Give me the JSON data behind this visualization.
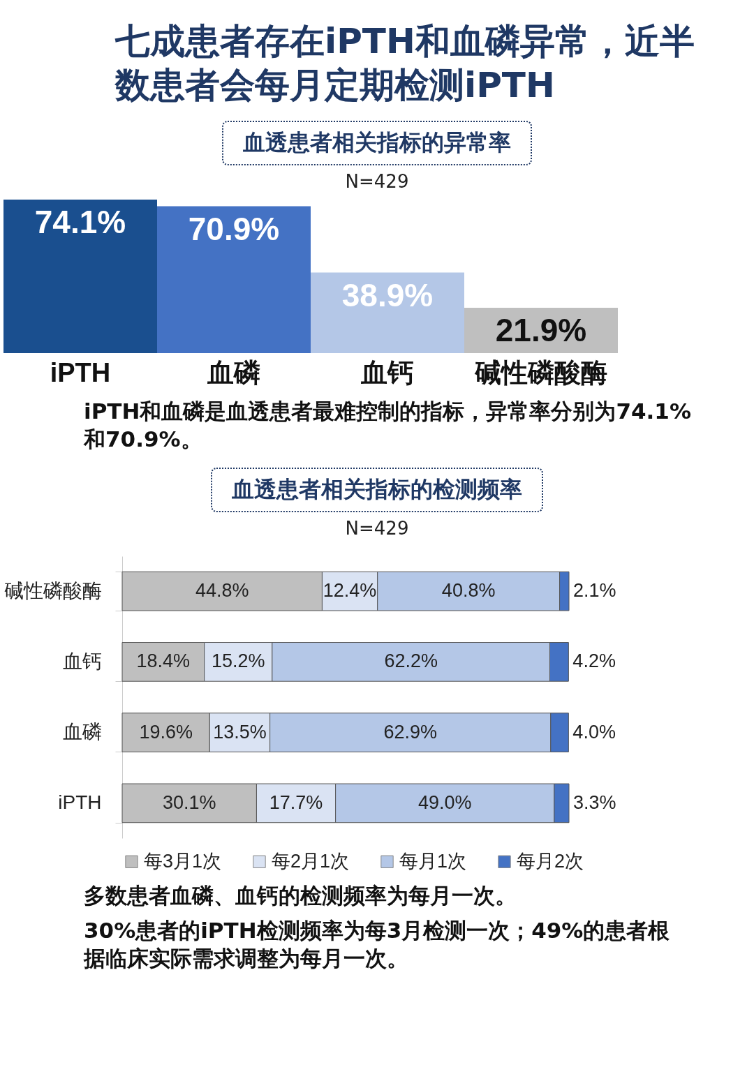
{
  "chart_data": [
    {
      "type": "bar",
      "title": "七成患者存在iPTH和血磷异常，近半数患者会每月定期检测iPTH",
      "subtitle": "血透患者相关指标的异常率",
      "categories": [
        "iPTH",
        "血磷",
        "血钙",
        "碱性磷酸酶"
      ],
      "values": [
        74.1,
        70.9,
        38.9,
        21.9
      ],
      "value_labels": [
        "74.1%",
        "70.9%",
        "38.9%",
        "21.9%"
      ],
      "colors": [
        "#1a4f8f",
        "#4472c4",
        "#b4c7e7",
        "#bfbfbf"
      ],
      "annotations": [
        "N=429",
        "iPTH和血磷是血透患者最难控制的指标，异常率分别为74.1%和70.9%。"
      ]
    },
    {
      "type": "bar",
      "orientation": "horizontal",
      "stacked": true,
      "title": "血透患者相关指标的检测频率",
      "categories": [
        "碱性磷酸酶",
        "血钙",
        "血磷",
        "iPTH"
      ],
      "series": [
        {
          "name": "每3月1次",
          "color": "#bfbfbf",
          "values": [
            44.8,
            18.4,
            19.6,
            30.1
          ],
          "value_labels": [
            "44.8%",
            "18.4%",
            "19.6%",
            "30.1%"
          ]
        },
        {
          "name": "每2月1次",
          "color": "#dae3f3",
          "values": [
            12.4,
            15.2,
            13.5,
            17.7
          ],
          "value_labels": [
            "12.4%",
            "15.2%",
            "13.5%",
            "17.7%"
          ]
        },
        {
          "name": "每月1次",
          "color": "#b4c7e7",
          "values": [
            40.8,
            62.2,
            62.9,
            49.0
          ],
          "value_labels": [
            "40.8%",
            "62.2%",
            "62.9%",
            "49.0%"
          ]
        },
        {
          "name": "每月2次",
          "color": "#4472c4",
          "values": [
            2.1,
            4.2,
            4.0,
            3.3
          ],
          "value_labels": [
            "2.1%",
            "4.2%",
            "4.0%",
            "3.3%"
          ]
        }
      ],
      "legend": "bottom",
      "tick_labels": "y",
      "annotations": [
        "N=429",
        "多数患者血磷、血钙的检测频率为每月一次。",
        "30%患者的iPTH检测频率为每3月检测一次；49%的患者根据临床实际需求调整为每月一次。"
      ]
    }
  ]
}
